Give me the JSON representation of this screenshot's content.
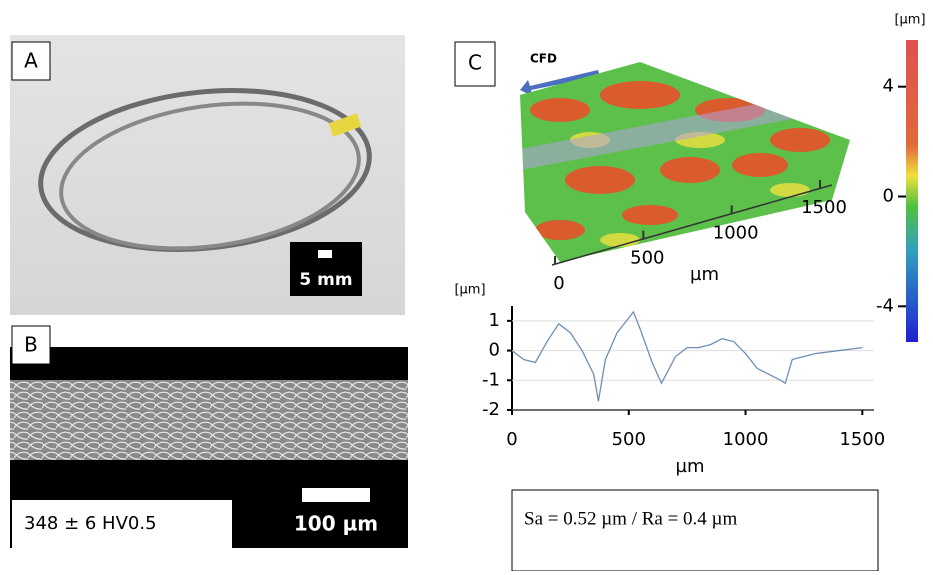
{
  "panels": {
    "A": {
      "label": "A",
      "scale_label": "5 mm"
    },
    "B": {
      "label": "B",
      "scale_label": "100 µm",
      "hardness": "348 ± 6 HV0.5"
    },
    "C": {
      "label": "C",
      "flow_label": "CFD",
      "surface_ticks": [
        0,
        500,
        1000,
        1500
      ],
      "surface_unit": "µm",
      "colorbar_unit": "[µm]",
      "colorbar_ticks": [
        4,
        0,
        -4
      ],
      "colorbar_lim": [
        -5.3,
        5.7
      ],
      "roughness": "Sa = 0.52 µm / Ra = 0.4 µm"
    }
  },
  "chart_data": {
    "type": "line",
    "y_unit": "[µm]",
    "xlabel": "µm",
    "x": [
      0,
      50,
      100,
      150,
      200,
      250,
      300,
      350,
      370,
      400,
      450,
      500,
      520,
      550,
      600,
      640,
      700,
      750,
      800,
      850,
      900,
      950,
      1000,
      1050,
      1100,
      1150,
      1170,
      1200,
      1300,
      1400,
      1500
    ],
    "values": [
      0,
      -0.3,
      -0.4,
      0.3,
      0.9,
      0.6,
      0,
      -0.8,
      -1.7,
      -0.3,
      0.6,
      1.1,
      1.3,
      0.7,
      -0.4,
      -1.1,
      -0.2,
      0.1,
      0.1,
      0.2,
      0.4,
      0.3,
      -0.1,
      -0.6,
      -0.8,
      -1,
      -1.1,
      -0.3,
      -0.1,
      0,
      0.1
    ],
    "xlim": [
      0,
      1550
    ],
    "ylim": [
      -2,
      1.5
    ],
    "xticks": [
      0,
      500,
      1000,
      1500
    ],
    "yticks": [
      -2,
      -1,
      0,
      1
    ],
    "grid": true,
    "color": "#6e8fb5"
  }
}
